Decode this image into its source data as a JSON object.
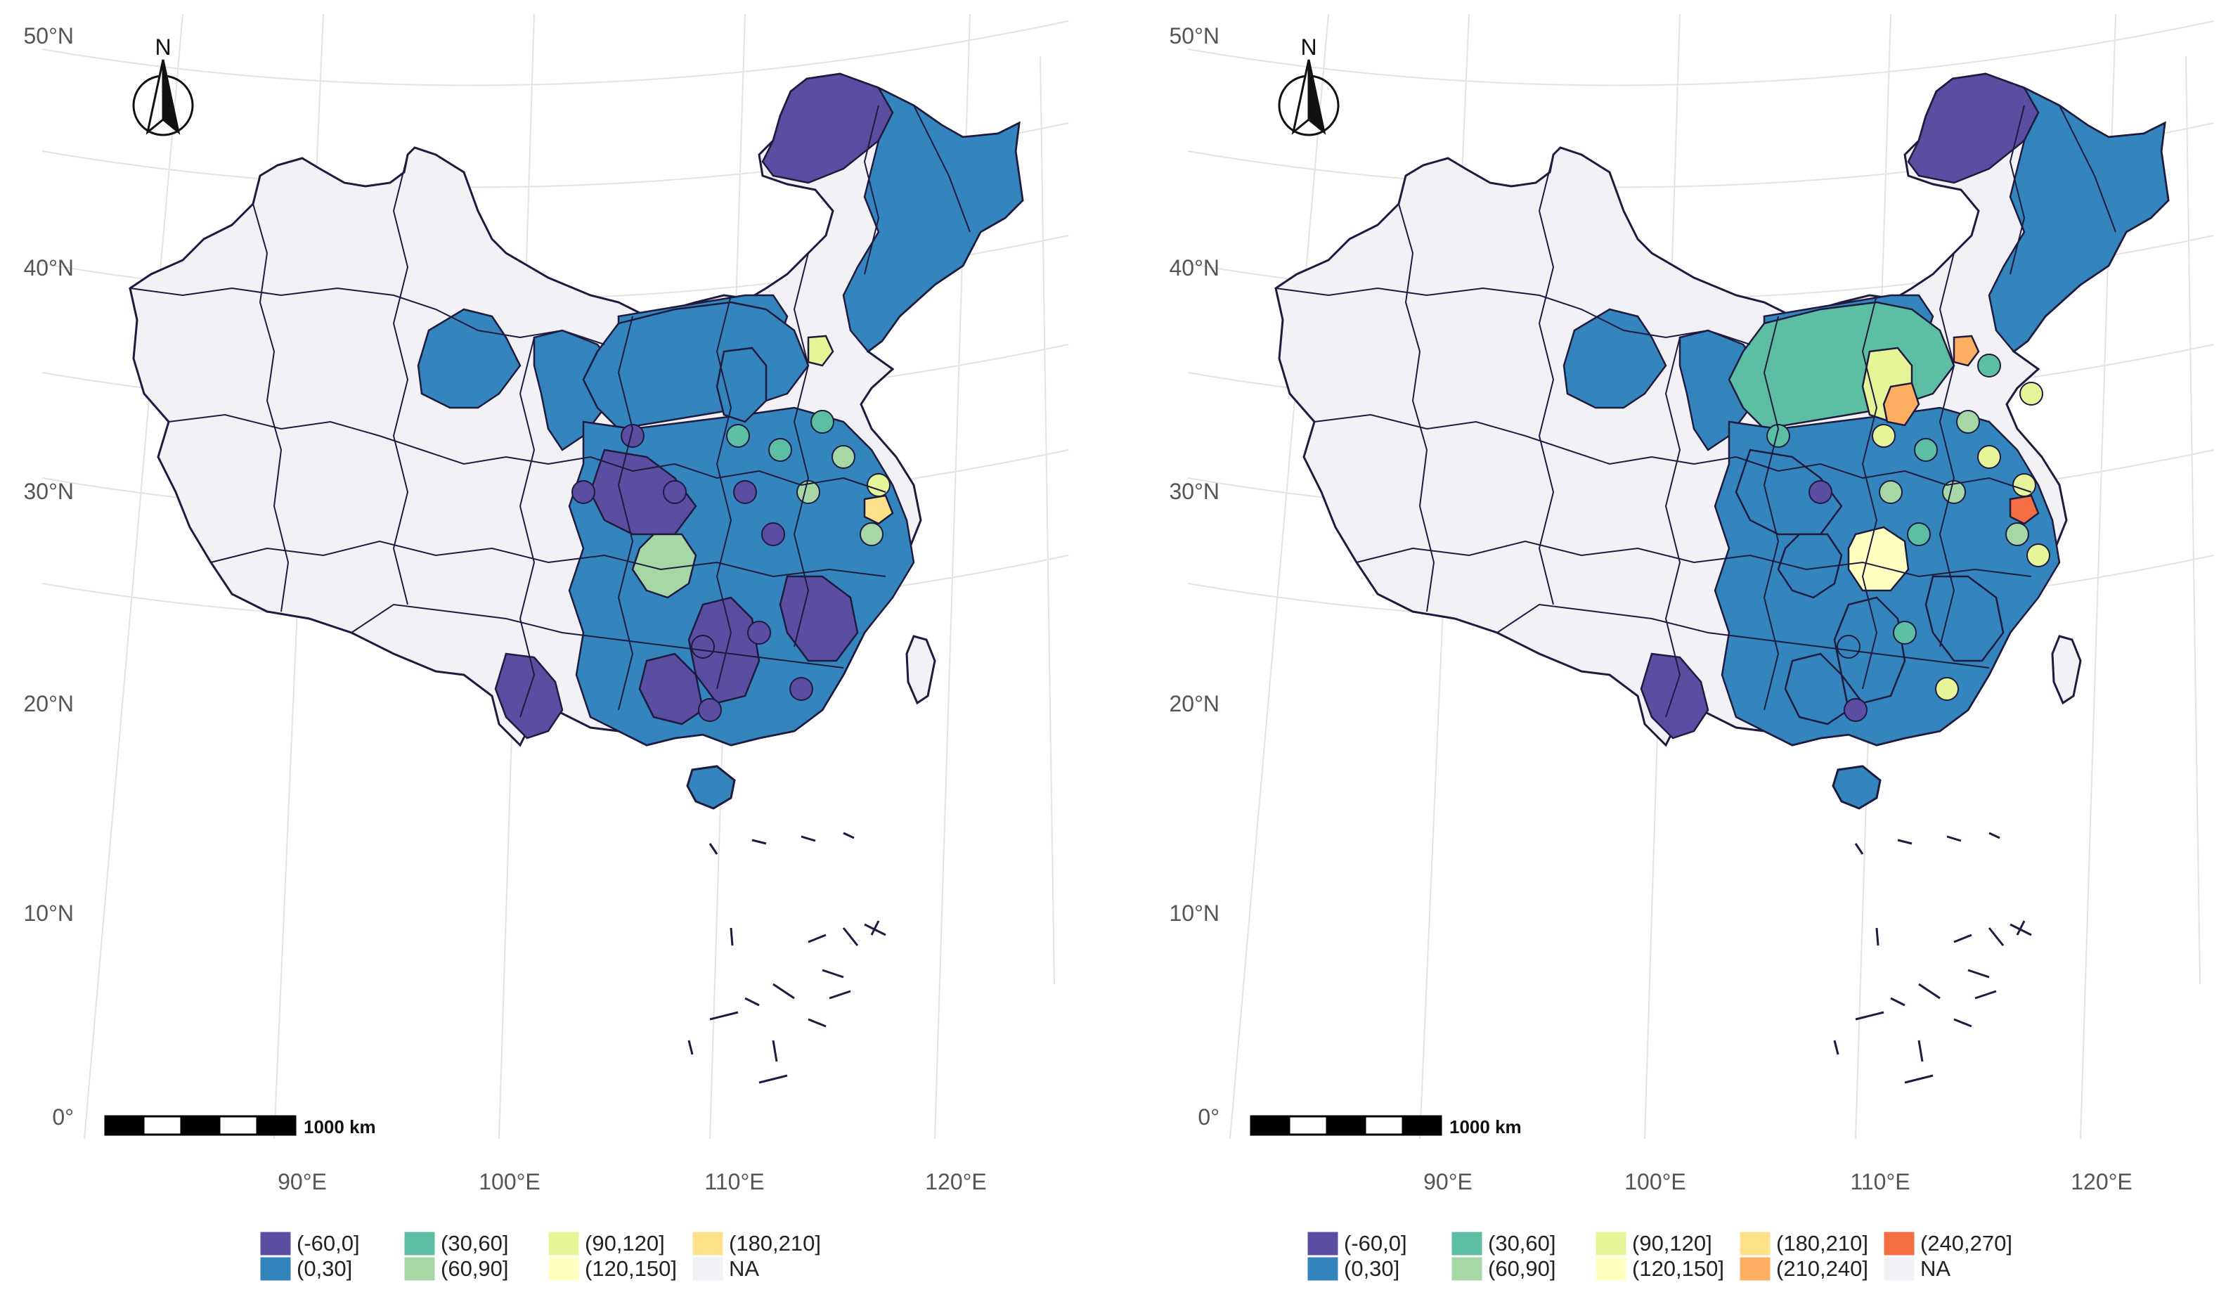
{
  "maps": [
    {
      "lat_labels": [
        "50°N",
        "40°N",
        "30°N",
        "20°N",
        "10°N",
        "0°"
      ],
      "lon_labels": [
        "90°E",
        "100°E",
        "110°E",
        "120°E"
      ],
      "north_label": "N",
      "scale_label": "1000 km",
      "legend": [
        {
          "label": "(-60,0]",
          "color": "#5b4da1"
        },
        {
          "label": "(0,30]",
          "color": "#3484bd"
        },
        {
          "label": "(30,60]",
          "color": "#5cbfa3"
        },
        {
          "label": "(60,90]",
          "color": "#a5d8a4"
        },
        {
          "label": "(90,120]",
          "color": "#e6f597"
        },
        {
          "label": "(120,150]",
          "color": "#ffffbf"
        },
        {
          "label": "(180,210]",
          "color": "#fee08b"
        },
        {
          "label": "NA",
          "color": "#f2f1f5"
        }
      ]
    },
    {
      "lat_labels": [
        "50°N",
        "40°N",
        "30°N",
        "20°N",
        "10°N",
        "0°"
      ],
      "lon_labels": [
        "90°E",
        "100°E",
        "110°E",
        "120°E"
      ],
      "north_label": "N",
      "scale_label": "1000 km",
      "legend": [
        {
          "label": "(-60,0]",
          "color": "#5b4da1"
        },
        {
          "label": "(0,30]",
          "color": "#3484bd"
        },
        {
          "label": "(30,60]",
          "color": "#5cbfa3"
        },
        {
          "label": "(60,90]",
          "color": "#a5d8a4"
        },
        {
          "label": "(90,120]",
          "color": "#e6f597"
        },
        {
          "label": "(120,150]",
          "color": "#ffffbf"
        },
        {
          "label": "(180,210]",
          "color": "#fee08b"
        },
        {
          "label": "(210,240]",
          "color": "#fdae61"
        },
        {
          "label": "(240,270]",
          "color": "#f46d43"
        },
        {
          "label": "NA",
          "color": "#f2f1f5"
        }
      ]
    }
  ],
  "colors": {
    "border": "#1e1b3f",
    "graticule": "#e3e3e3",
    "axis_text": "#555555"
  }
}
